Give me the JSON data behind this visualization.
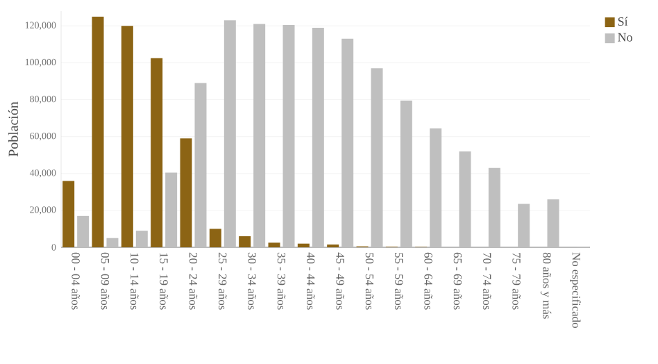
{
  "chart_data": {
    "type": "bar",
    "ylabel": "Población",
    "categories": [
      "00 - 04 años",
      "05 - 09 años",
      "10 - 14 años",
      "15 - 19 años",
      "20 - 24 años",
      "25 - 29 años",
      "30 - 34 años",
      "35 - 39 años",
      "40 - 44 años",
      "45 - 49 años",
      "50 - 54 años",
      "55 - 59 años",
      "60 - 64 años",
      "65 - 69 años",
      "70 - 74 años",
      "75 - 79 años",
      "80 años y más",
      "No especificado"
    ],
    "series": [
      {
        "name": "Sí",
        "color": "#8c6414",
        "values": [
          36000,
          125000,
          120000,
          102500,
          59000,
          10000,
          6000,
          2500,
          2000,
          1500,
          500,
          300,
          200,
          0,
          0,
          0,
          0,
          0
        ]
      },
      {
        "name": "No",
        "color": "#bfbfbf",
        "values": [
          17000,
          5000,
          9000,
          40500,
          89000,
          123000,
          121000,
          120500,
          119000,
          113000,
          97000,
          79500,
          64500,
          52000,
          43000,
          23500,
          26000,
          300
        ]
      }
    ],
    "yticks": [
      {
        "value": 0,
        "label": "0"
      },
      {
        "value": 20000,
        "label": "20,000"
      },
      {
        "value": 40000,
        "label": "40,000"
      },
      {
        "value": 60000,
        "label": "60,000"
      },
      {
        "value": 80000,
        "label": "80,000"
      },
      {
        "value": 100000,
        "label": "100,000"
      },
      {
        "value": 120000,
        "label": "120,000"
      }
    ],
    "ylim": [
      0,
      128000
    ],
    "grid": "y",
    "legend": "top right"
  }
}
